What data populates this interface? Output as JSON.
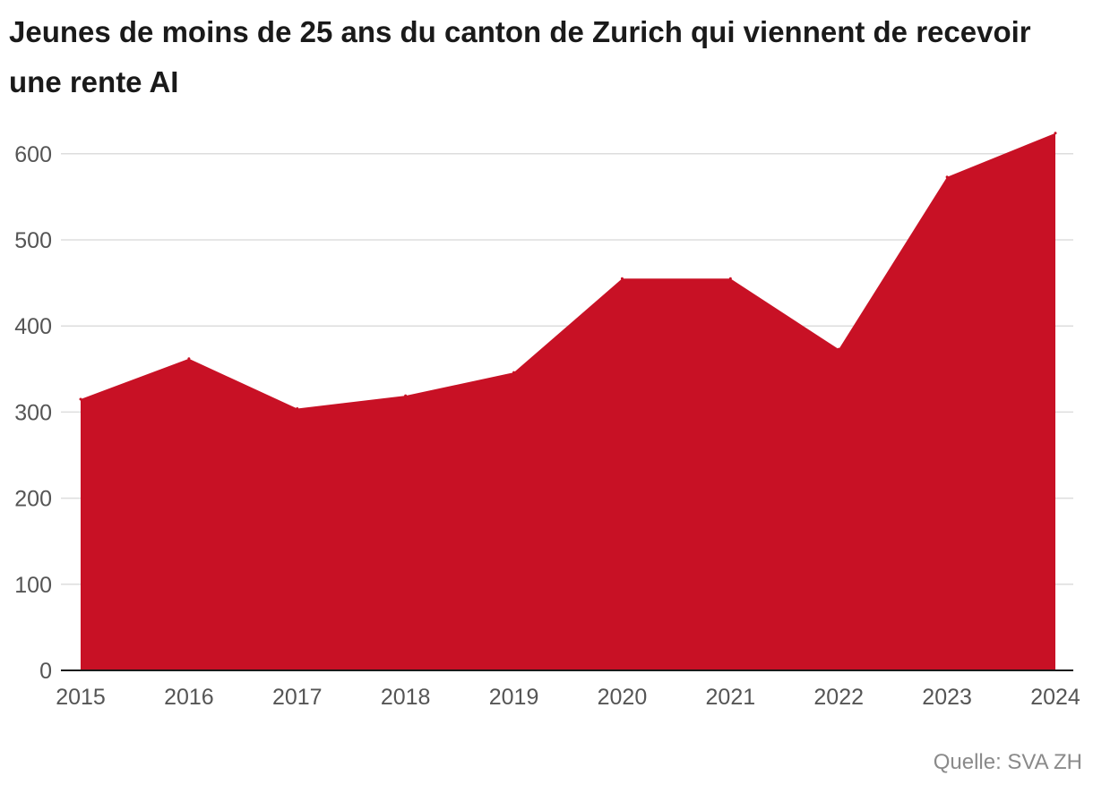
{
  "chart_data": {
    "type": "area",
    "title": "Jeunes de moins de 25 ans du canton de Zurich qui viennent de recevoir une rente AI",
    "xlabel": "",
    "ylabel": "",
    "categories": [
      "2015",
      "2016",
      "2017",
      "2018",
      "2019",
      "2020",
      "2021",
      "2022",
      "2023",
      "2024"
    ],
    "values": [
      315,
      362,
      304,
      319,
      346,
      455,
      455,
      373,
      573,
      624
    ],
    "ylim": [
      0,
      650
    ],
    "yticks": [
      0,
      100,
      200,
      300,
      400,
      500,
      600
    ],
    "grid": true,
    "fill_color": "#c81125",
    "source": "Quelle: SVA ZH"
  }
}
